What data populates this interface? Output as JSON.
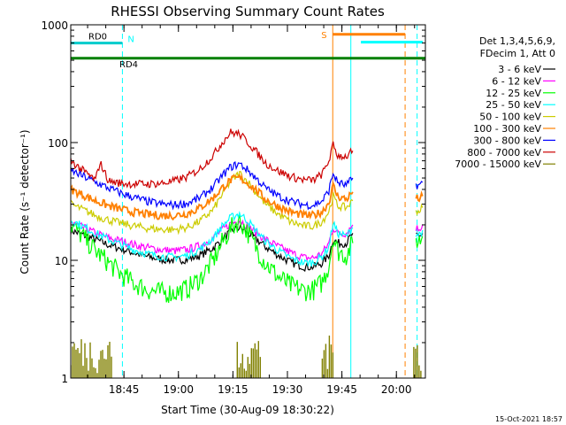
{
  "chart_data": {
    "type": "line",
    "title": "RHESSI Observing Summary Count Rates",
    "xlabel": "Start Time (30-Aug-09 18:30:22)",
    "ylabel": "Count Rate (s⁻¹ detector⁻¹)",
    "yscale": "log",
    "xlim": [
      18.506,
      20.133
    ],
    "ylim": [
      1,
      1000
    ],
    "x_unit": "hours UT",
    "x_ticks": [
      {
        "x": 18.75,
        "label": "18:45"
      },
      {
        "x": 19.0,
        "label": "19:00"
      },
      {
        "x": 19.25,
        "label": "19:15"
      },
      {
        "x": 19.5,
        "label": "19:30"
      },
      {
        "x": 19.75,
        "label": "19:45"
      },
      {
        "x": 20.0,
        "label": "20:00"
      }
    ],
    "y_ticks": [
      {
        "y": 1,
        "label": "1"
      },
      {
        "y": 10,
        "label": "10"
      },
      {
        "y": 100,
        "label": "100"
      },
      {
        "y": 1000,
        "label": "1000"
      }
    ],
    "legend": {
      "header": [
        "Det 1,3,4,5,6,9,",
        "FDecim 1, Att 0"
      ],
      "placement": "right"
    },
    "series": [
      {
        "name": "3 - 6 keV",
        "color": "#000000",
        "segments": [
          {
            "x": [
              18.506,
              18.56,
              18.62,
              18.68,
              18.74,
              18.8,
              18.86,
              18.92,
              18.98,
              19.04,
              19.1,
              19.16,
              19.2,
              19.24,
              19.28,
              19.32,
              19.36,
              19.4,
              19.46,
              19.52,
              19.58,
              19.62,
              19.66,
              19.69,
              19.71,
              19.73,
              19.77,
              19.8
            ],
            "y": [
              18,
              16.5,
              15,
              13.5,
              12.5,
              11.5,
              10.7,
              10.2,
              10,
              10.2,
              11,
              12.8,
              15,
              17.5,
              19,
              17,
              15,
              13,
              11,
              9.5,
              8.8,
              8.8,
              9.5,
              11,
              15,
              14,
              14,
              17
            ]
          },
          {
            "x": [
              20.09,
              20.1,
              20.11,
              20.12
            ],
            "y": [
              16,
              15.5,
              16,
              17
            ]
          }
        ]
      },
      {
        "name": "6 - 12 keV",
        "color": "#ff00ff",
        "segments": [
          {
            "x": [
              18.506,
              18.56,
              18.62,
              18.68,
              18.74,
              18.8,
              18.86,
              18.92,
              18.98,
              19.04,
              19.1,
              19.16,
              19.2,
              19.24,
              19.28,
              19.32,
              19.36,
              19.4,
              19.46,
              19.52,
              19.58,
              19.62,
              19.66,
              19.69,
              19.71,
              19.73,
              19.77,
              19.8
            ],
            "y": [
              21,
              19,
              17,
              15.5,
              14.5,
              13.5,
              12.8,
              12.3,
              12,
              12.3,
              13.3,
              15.5,
              18,
              20.5,
              22,
              19.5,
              17,
              15,
              13,
              11.5,
              10.5,
              10.5,
              11.5,
              14,
              19,
              17,
              17,
              20
            ]
          },
          {
            "x": [
              20.09,
              20.1,
              20.11,
              20.12
            ],
            "y": [
              19,
              18.5,
              19,
              20
            ]
          }
        ]
      },
      {
        "name": "12 - 25 keV",
        "color": "#00ff00",
        "segments": [
          {
            "x": [
              18.506,
              18.56,
              18.62,
              18.68,
              18.74,
              18.8,
              18.86,
              18.92,
              18.98,
              19.04,
              19.1,
              19.16,
              19.2,
              19.24,
              19.28,
              19.32,
              19.36,
              19.4,
              19.46,
              19.52,
              19.58,
              19.62,
              19.66,
              19.69,
              19.71,
              19.73,
              19.77,
              19.8
            ],
            "y": [
              20,
              16,
              12,
              9.5,
              7.5,
              6.3,
              5.6,
              5.3,
              5.3,
              5.7,
              7,
              10,
              14,
              18.5,
              22,
              17,
              12.5,
              9.5,
              7.2,
              6,
              5.5,
              5.6,
              6.5,
              9,
              16,
              12,
              11,
              14
            ]
          },
          {
            "x": [
              20.09,
              20.1,
              20.11,
              20.12
            ],
            "y": [
              15,
              14.5,
              15,
              16
            ]
          }
        ]
      },
      {
        "name": "25 - 50 keV",
        "color": "#00ffff",
        "segments": [
          {
            "x": [
              18.506,
              18.56,
              18.62,
              18.68,
              18.74,
              18.8,
              18.86,
              18.92,
              18.98,
              19.04,
              19.1,
              19.16,
              19.2,
              19.24,
              19.28,
              19.32,
              19.36,
              19.4,
              19.46,
              19.52,
              19.58,
              19.62,
              19.66,
              19.69,
              19.71,
              19.73,
              19.77,
              19.8
            ],
            "y": [
              22,
              19.5,
              17,
              15,
              13.5,
              12.2,
              11.3,
              10.8,
              10.6,
              11,
              12.5,
              15.5,
              19.5,
              23,
              25,
              21.5,
              17.5,
              14.5,
              12,
              10.3,
              9.5,
              9.6,
              10.8,
              13,
              21,
              17,
              16,
              19
            ]
          },
          {
            "x": [
              20.09,
              20.1,
              20.11,
              20.12
            ],
            "y": [
              17,
              16.5,
              17,
              18
            ]
          }
        ]
      },
      {
        "name": "50 - 100 keV",
        "color": "#cccc00",
        "segments": [
          {
            "x": [
              18.506,
              18.56,
              18.62,
              18.68,
              18.74,
              18.8,
              18.86,
              18.92,
              18.98,
              19.04,
              19.1,
              19.16,
              19.2,
              19.24,
              19.28,
              19.32,
              19.36,
              19.4,
              19.46,
              19.52,
              19.58,
              19.62,
              19.66,
              19.69,
              19.71,
              19.73,
              19.77,
              19.8
            ],
            "y": [
              30,
              27,
              24,
              22,
              20.5,
              19.5,
              18.7,
              18.3,
              18.2,
              19,
              21.5,
              27,
              36,
              47,
              55,
              46,
              37,
              30,
              24.5,
              21,
              19.5,
              19.5,
              21.5,
              26,
              35,
              29,
              28,
              32
            ]
          },
          {
            "x": [
              20.09,
              20.1,
              20.11,
              20.12
            ],
            "y": [
              27,
              26,
              27,
              28
            ]
          }
        ]
      },
      {
        "name": "100 - 300 keV",
        "color": "#ff8000",
        "segments": [
          {
            "x": [
              18.506,
              18.56,
              18.62,
              18.68,
              18.74,
              18.8,
              18.86,
              18.92,
              18.98,
              19.04,
              19.1,
              19.16,
              19.2,
              19.24,
              19.28,
              19.32,
              19.36,
              19.4,
              19.46,
              19.52,
              19.58,
              19.62,
              19.66,
              19.69,
              19.71,
              19.73,
              19.77,
              19.8
            ],
            "y": [
              40,
              36,
              32,
              29,
              27,
              25.5,
              24.5,
              24,
              24,
              25,
              28,
              34,
              41,
              48,
              50,
              45,
              39,
              33,
              28.5,
              25.5,
              24,
              24,
              26,
              31,
              43,
              35,
              33,
              38
            ]
          },
          {
            "x": [
              20.09,
              20.1,
              20.11,
              20.12
            ],
            "y": [
              34,
              33,
              34,
              35
            ]
          }
        ]
      },
      {
        "name": "300 - 800 keV",
        "color": "#0000ff",
        "segments": [
          {
            "x": [
              18.506,
              18.56,
              18.62,
              18.68,
              18.74,
              18.8,
              18.86,
              18.92,
              18.98,
              19.04,
              19.1,
              19.16,
              19.2,
              19.24,
              19.28,
              19.32,
              19.36,
              19.4,
              19.46,
              19.52,
              19.58,
              19.62,
              19.66,
              19.69,
              19.71,
              19.73,
              19.77,
              19.8
            ],
            "y": [
              58,
              52,
              46,
              41,
              37,
              34,
              31.5,
              30,
              29.5,
              30.5,
              34,
              42,
              52,
              62,
              66,
              58,
              49,
              41,
              35,
              31.5,
              29.5,
              29.5,
              32,
              39,
              55,
              46,
              43,
              50
            ]
          },
          {
            "x": [
              20.09,
              20.1,
              20.11,
              20.12
            ],
            "y": [
              44,
              43,
              44,
              46
            ]
          }
        ]
      },
      {
        "name": "800 - 7000 keV",
        "color": "#cc0000",
        "segments": [
          {
            "x": [
              18.506,
              18.56,
              18.62,
              18.64,
              18.68,
              18.74,
              18.8,
              18.86,
              18.92,
              18.98,
              19.04,
              19.1,
              19.16,
              19.2,
              19.24,
              19.28,
              19.32,
              19.36,
              19.4,
              19.46,
              19.52,
              19.58,
              19.62,
              19.66,
              19.69,
              19.71,
              19.73,
              19.77,
              19.8
            ],
            "y": [
              70,
              58,
              48,
              68,
              47,
              45,
              44.5,
              44.5,
              45,
              47,
              51,
              60,
              78,
              100,
              122,
              118,
              100,
              82,
              67,
              57,
              51,
              48,
              48,
              54,
              70,
              95,
              78,
              76,
              85
            ]
          }
        ]
      },
      {
        "name": "7000 - 15000 keV",
        "color": "#808000",
        "segments": [
          {
            "x": [
              18.506,
              18.7
            ],
            "y": [
              1.8,
              1.8
            ]
          },
          {
            "x": [
              19.27,
              19.38
            ],
            "y": [
              1.8,
              1.8
            ]
          },
          {
            "x": [
              19.66,
              19.71
            ],
            "y": [
              1.6,
              1.6
            ]
          },
          {
            "x": [
              20.08,
              20.12
            ],
            "y": [
              1.8,
              1.8
            ]
          }
        ]
      }
    ],
    "annotations": {
      "attenuator_state": {
        "label": "RD0",
        "color": "#00cccc",
        "x": [
          18.506,
          18.743
        ],
        "level": 700
      },
      "decimation_state": {
        "label": "RD4",
        "color": "#008000",
        "x": [
          18.506,
          20.133
        ],
        "level": 520
      },
      "night": {
        "label": "N",
        "color": "#00ffff",
        "x": [
          18.743,
          20.133
        ]
      },
      "saa": {
        "label": "S",
        "color": "#ff8000",
        "x": [
          19.708,
          20.04
        ]
      },
      "vlines": [
        {
          "x": 18.506,
          "color": "#00ffff",
          "dash": false
        },
        {
          "x": 18.743,
          "color": "#00ffff",
          "dash": true
        },
        {
          "x": 19.708,
          "color": "#ff8000",
          "dash": false
        },
        {
          "x": 19.791,
          "color": "#00ffff",
          "dash": false
        },
        {
          "x": 20.04,
          "color": "#ff8000",
          "dash": true
        },
        {
          "x": 20.095,
          "color": "#00ffff",
          "dash": true
        }
      ]
    }
  },
  "footer": {
    "timestamp": "15-Oct-2021 18:57"
  }
}
